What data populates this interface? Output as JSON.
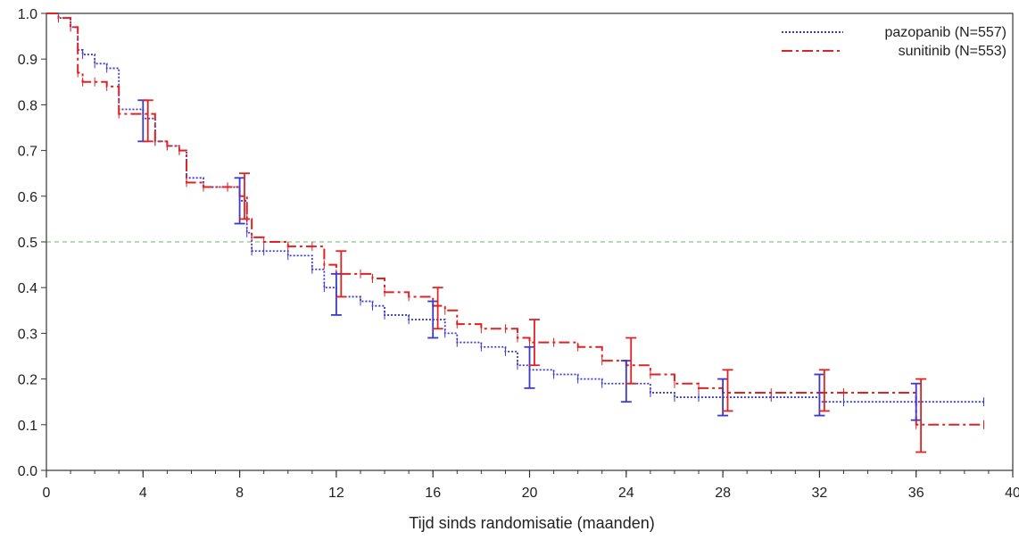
{
  "chart_data": {
    "type": "line",
    "title": "",
    "xlabel": "Tijd sinds randomisatie (maanden)",
    "ylabel": "",
    "xlim": [
      0,
      40
    ],
    "ylim": [
      0,
      1.0
    ],
    "xticks": [
      0,
      4,
      8,
      12,
      16,
      20,
      24,
      28,
      32,
      36,
      40
    ],
    "xtick_labels": [
      "0",
      "4",
      "8",
      "12",
      "16",
      "20",
      "24",
      "28",
      "32",
      "36",
      "40"
    ],
    "yticks": [
      0.0,
      0.1,
      0.2,
      0.3,
      0.4,
      0.5,
      0.6,
      0.7,
      0.8,
      0.9,
      1.0
    ],
    "ytick_labels": [
      "0.0",
      "0.1",
      "0.2",
      "0.3",
      "0.4",
      "0.5",
      "0.6",
      "0.7",
      "0.8",
      "0.9",
      "1.0"
    ],
    "reference_line": {
      "y": 0.5,
      "color": "#8fbf8f",
      "style": "dashed"
    },
    "legend_position": "top-right",
    "series": [
      {
        "name": "pazopanib (N=557)",
        "color": "#3a3acc",
        "style": "dotted",
        "x": [
          0,
          0.5,
          1.0,
          1.3,
          1.5,
          2.0,
          2.5,
          3.0,
          4.0,
          4.5,
          5.0,
          5.5,
          5.8,
          6.5,
          7.5,
          8.0,
          8.3,
          8.5,
          9.0,
          10.0,
          11.0,
          11.5,
          12.0,
          13.0,
          13.5,
          14.0,
          15.0,
          16.0,
          16.5,
          17.0,
          18.0,
          19.0,
          19.5,
          20.0,
          21.0,
          22.0,
          23.0,
          24.0,
          25.0,
          26.0,
          27.0,
          28.0,
          30.0,
          32.0,
          33.0,
          36.0,
          38.8
        ],
        "y": [
          1.0,
          0.99,
          0.97,
          0.92,
          0.91,
          0.89,
          0.88,
          0.79,
          0.77,
          0.72,
          0.71,
          0.7,
          0.64,
          0.62,
          0.62,
          0.59,
          0.52,
          0.48,
          0.48,
          0.47,
          0.44,
          0.4,
          0.38,
          0.37,
          0.36,
          0.34,
          0.33,
          0.33,
          0.3,
          0.28,
          0.27,
          0.26,
          0.23,
          0.22,
          0.21,
          0.2,
          0.19,
          0.19,
          0.17,
          0.16,
          0.16,
          0.16,
          0.16,
          0.15,
          0.15,
          0.15,
          0.15
        ],
        "error_bars": [
          {
            "x": 4.0,
            "y": 0.76,
            "low": 0.72,
            "high": 0.81
          },
          {
            "x": 8.0,
            "y": 0.59,
            "low": 0.54,
            "high": 0.64
          },
          {
            "x": 12.0,
            "y": 0.38,
            "low": 0.34,
            "high": 0.43
          },
          {
            "x": 16.0,
            "y": 0.33,
            "low": 0.29,
            "high": 0.37
          },
          {
            "x": 20.0,
            "y": 0.22,
            "low": 0.18,
            "high": 0.27
          },
          {
            "x": 24.0,
            "y": 0.19,
            "low": 0.15,
            "high": 0.24
          },
          {
            "x": 28.0,
            "y": 0.16,
            "low": 0.12,
            "high": 0.2
          },
          {
            "x": 32.0,
            "y": 0.16,
            "low": 0.12,
            "high": 0.21
          },
          {
            "x": 36.0,
            "y": 0.15,
            "low": 0.11,
            "high": 0.19
          }
        ]
      },
      {
        "name": "sunitinib (N=553)",
        "color": "#e02222",
        "style": "dashdot",
        "x": [
          0,
          0.5,
          1.0,
          1.3,
          1.5,
          2.0,
          2.5,
          3.0,
          4.0,
          4.5,
          5.0,
          5.5,
          5.8,
          6.5,
          7.5,
          8.0,
          8.3,
          8.5,
          9.0,
          10.0,
          11.0,
          11.5,
          12.0,
          13.0,
          13.5,
          14.0,
          15.0,
          16.0,
          16.5,
          17.0,
          18.0,
          19.0,
          19.5,
          20.0,
          21.0,
          22.0,
          23.0,
          24.0,
          25.0,
          26.0,
          27.0,
          28.0,
          30.0,
          32.0,
          33.0,
          36.0,
          38.8
        ],
        "y": [
          1.0,
          0.99,
          0.97,
          0.87,
          0.85,
          0.85,
          0.84,
          0.78,
          0.78,
          0.72,
          0.71,
          0.7,
          0.63,
          0.62,
          0.62,
          0.6,
          0.55,
          0.51,
          0.5,
          0.49,
          0.49,
          0.45,
          0.43,
          0.43,
          0.42,
          0.39,
          0.38,
          0.36,
          0.35,
          0.32,
          0.31,
          0.31,
          0.29,
          0.28,
          0.28,
          0.27,
          0.24,
          0.23,
          0.21,
          0.19,
          0.18,
          0.17,
          0.17,
          0.17,
          0.17,
          0.1,
          0.1
        ],
        "error_bars": [
          {
            "x": 4.2,
            "y": 0.77,
            "low": 0.72,
            "high": 0.81
          },
          {
            "x": 8.2,
            "y": 0.6,
            "low": 0.55,
            "high": 0.65
          },
          {
            "x": 12.2,
            "y": 0.43,
            "low": 0.38,
            "high": 0.48
          },
          {
            "x": 16.2,
            "y": 0.36,
            "low": 0.31,
            "high": 0.4
          },
          {
            "x": 20.2,
            "y": 0.28,
            "low": 0.23,
            "high": 0.33
          },
          {
            "x": 24.2,
            "y": 0.23,
            "low": 0.19,
            "high": 0.29
          },
          {
            "x": 28.2,
            "y": 0.17,
            "low": 0.13,
            "high": 0.22
          },
          {
            "x": 32.2,
            "y": 0.17,
            "low": 0.13,
            "high": 0.22
          },
          {
            "x": 36.2,
            "y": 0.1,
            "low": 0.04,
            "high": 0.2
          }
        ]
      }
    ]
  }
}
